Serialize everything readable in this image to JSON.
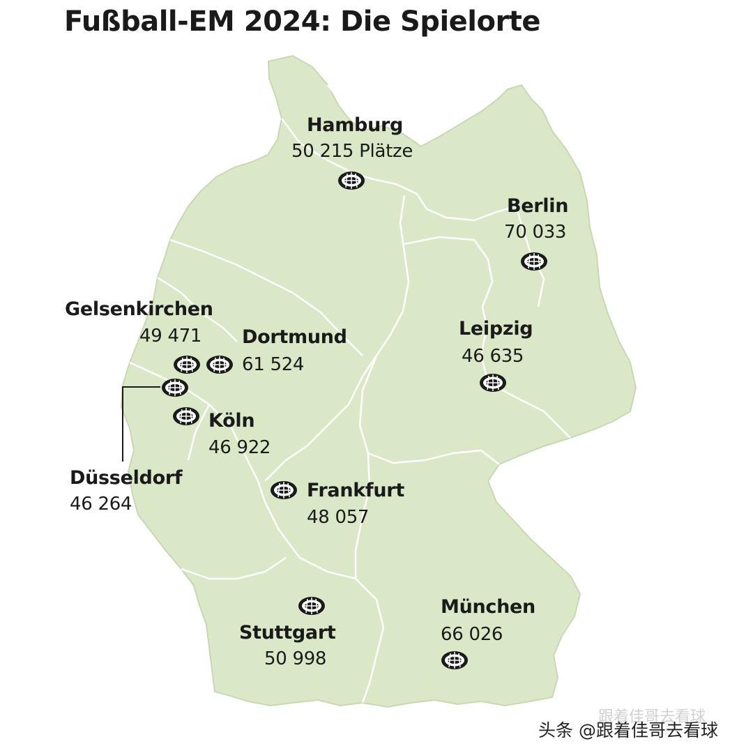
{
  "title": "Fußball-EM 2024: Die Spielorte",
  "colors": {
    "land": "#dbe8c8",
    "border": "#ffffff",
    "outline": "#c9d8b3",
    "stadium_icon": "#1a1a1a"
  },
  "cities": [
    {
      "name": "Hamburg",
      "capacity": "50 215 Plätze"
    },
    {
      "name": "Berlin",
      "capacity": "70 033"
    },
    {
      "name": "Gelsenkirchen",
      "capacity": "49 471"
    },
    {
      "name": "Dortmund",
      "capacity": "61 524"
    },
    {
      "name": "Leipzig",
      "capacity": "46 635"
    },
    {
      "name": "Köln",
      "capacity": "46 922"
    },
    {
      "name": "Düsseldorf",
      "capacity": "46 264"
    },
    {
      "name": "Frankfurt",
      "capacity": "48 057"
    },
    {
      "name": "München",
      "capacity": "66 026"
    },
    {
      "name": "Stuttgart",
      "capacity": "50 998"
    }
  ],
  "icons": {
    "stadium": "stadium-icon"
  },
  "watermark": {
    "main": "头条 @跟着佳哥去看球",
    "faded": "跟着佳哥去看球"
  }
}
